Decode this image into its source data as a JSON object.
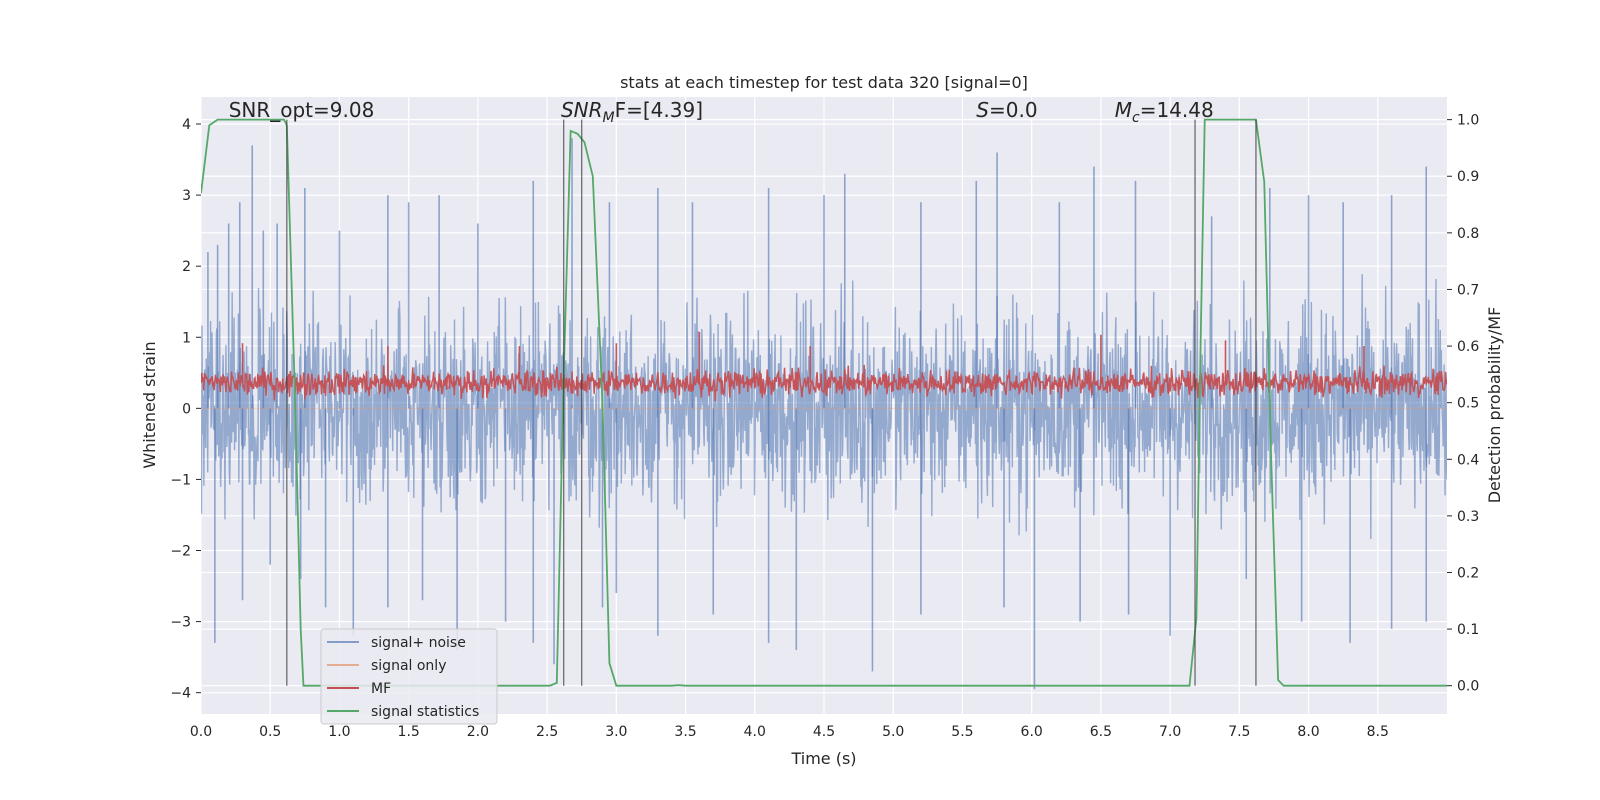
{
  "chart_data": {
    "type": "line",
    "title": "stats at each timestep for test data 320 [signal=0]",
    "xlabel": "Time (s)",
    "ylabel_left": "Whitened strain",
    "ylabel_right": "Detection probability/MF",
    "xlim": [
      0.0,
      9.0
    ],
    "ylim_left": [
      -4.3,
      4.38
    ],
    "ylim_right": [
      -0.05,
      1.04
    ],
    "x_ticks": [
      "0.0",
      "0.5",
      "1.0",
      "1.5",
      "2.0",
      "2.5",
      "3.0",
      "3.5",
      "4.0",
      "4.5",
      "5.0",
      "5.5",
      "6.0",
      "6.5",
      "7.0",
      "7.5",
      "8.0",
      "8.5"
    ],
    "x_tick_values": [
      0,
      0.5,
      1,
      1.5,
      2,
      2.5,
      3,
      3.5,
      4,
      4.5,
      5,
      5.5,
      6,
      6.5,
      7,
      7.5,
      8,
      8.5
    ],
    "y_left_ticks": [
      "4",
      "3",
      "2",
      "1",
      "0",
      "−1",
      "−2",
      "−3",
      "−4"
    ],
    "y_left_tick_values": [
      4,
      3,
      2,
      1,
      0,
      -1,
      -2,
      -3,
      -4
    ],
    "y_right_ticks": [
      "1.0",
      "0.9",
      "0.8",
      "0.7",
      "0.6",
      "0.5",
      "0.4",
      "0.3",
      "0.2",
      "0.1",
      "0.0"
    ],
    "y_right_tick_values": [
      1.0,
      0.9,
      0.8,
      0.7,
      0.6,
      0.5,
      0.4,
      0.3,
      0.2,
      0.1,
      0.0
    ],
    "grid": true,
    "legend_position": "lower-left",
    "annotations": [
      {
        "text": "SNR_opt=9.08",
        "x": 0.2,
        "y": 4.1
      },
      {
        "text_main": "SNR",
        "text_sub": "M",
        "text_rest": "F=[4.39]",
        "x": 2.6,
        "y": 4.1
      },
      {
        "text_main": "S",
        "text_rest": "=0.0",
        "x": 5.6,
        "y": 4.1
      },
      {
        "text_main": "M",
        "text_sub": "c",
        "text_rest": "=14.48",
        "x": 6.6,
        "y": 4.1
      }
    ],
    "vlines": [
      0.62,
      2.62,
      2.75,
      7.18,
      7.62
    ],
    "series": [
      {
        "name": "signal+ noise",
        "color": "#4c72b0",
        "axis": "left",
        "style": "noise",
        "envelope": {
          "low_typical": -1.6,
          "high_typical": 1.6,
          "max": 4.0,
          "min": -3.8
        },
        "peaks": [
          [
            0.05,
            2.2
          ],
          [
            0.12,
            2.3
          ],
          [
            0.2,
            2.6
          ],
          [
            0.28,
            2.9
          ],
          [
            0.37,
            3.7
          ],
          [
            0.45,
            2.5
          ],
          [
            0.55,
            2.6
          ],
          [
            0.75,
            3.1
          ],
          [
            1.0,
            2.5
          ],
          [
            1.35,
            3.0
          ],
          [
            1.5,
            2.9
          ],
          [
            1.72,
            3.0
          ],
          [
            2.0,
            2.6
          ],
          [
            2.4,
            3.2
          ],
          [
            2.68,
            3.8
          ],
          [
            2.95,
            2.9
          ],
          [
            3.3,
            3.1
          ],
          [
            3.55,
            2.9
          ],
          [
            4.1,
            3.1
          ],
          [
            4.5,
            3.0
          ],
          [
            4.65,
            3.3
          ],
          [
            5.2,
            2.9
          ],
          [
            5.6,
            3.2
          ],
          [
            5.75,
            3.6
          ],
          [
            6.2,
            2.9
          ],
          [
            6.45,
            3.4
          ],
          [
            6.75,
            3.2
          ],
          [
            7.3,
            2.7
          ],
          [
            7.72,
            3.1
          ],
          [
            8.0,
            3.0
          ],
          [
            8.25,
            2.9
          ],
          [
            8.6,
            3.0
          ],
          [
            8.85,
            3.4
          ]
        ],
        "troughs": [
          [
            0.1,
            -3.3
          ],
          [
            0.3,
            -2.7
          ],
          [
            0.5,
            -2.2
          ],
          [
            0.72,
            -2.4
          ],
          [
            0.9,
            -2.8
          ],
          [
            1.1,
            -3.2
          ],
          [
            1.35,
            -2.8
          ],
          [
            1.6,
            -2.7
          ],
          [
            1.85,
            -3.4
          ],
          [
            2.2,
            -3.0
          ],
          [
            2.4,
            -3.3
          ],
          [
            2.55,
            -3.6
          ],
          [
            2.9,
            -2.8
          ],
          [
            3.0,
            -2.6
          ],
          [
            3.3,
            -3.2
          ],
          [
            3.7,
            -2.9
          ],
          [
            4.1,
            -3.3
          ],
          [
            4.3,
            -3.4
          ],
          [
            4.85,
            -3.7
          ],
          [
            5.2,
            -2.9
          ],
          [
            5.8,
            -2.8
          ],
          [
            6.02,
            -3.95
          ],
          [
            6.35,
            -3.0
          ],
          [
            6.7,
            -2.9
          ],
          [
            7.0,
            -3.2
          ],
          [
            7.55,
            -2.4
          ],
          [
            7.95,
            -3.0
          ],
          [
            8.3,
            -3.3
          ],
          [
            8.6,
            -3.1
          ],
          [
            8.85,
            -3.0
          ]
        ]
      },
      {
        "name": "signal only",
        "color": "#dd8452",
        "axis": "left",
        "style": "flat",
        "value": 0.0
      },
      {
        "name": "MF",
        "color": "#c44e52",
        "axis": "right",
        "style": "noise",
        "envelope": {
          "low_typical": 0.505,
          "high_typical": 0.565,
          "max": 0.625,
          "min": 0.5
        },
        "peaks": [
          [
            0.3,
            0.605
          ],
          [
            1.35,
            0.6
          ],
          [
            2.3,
            0.6
          ],
          [
            3.0,
            0.605
          ],
          [
            3.6,
            0.625
          ],
          [
            4.4,
            0.6
          ],
          [
            6.5,
            0.62
          ],
          [
            7.4,
            0.61
          ],
          [
            8.4,
            0.6
          ]
        ]
      },
      {
        "name": "signal statistics",
        "color": "#55a868",
        "axis": "right",
        "style": "line",
        "x": [
          0.0,
          0.06,
          0.12,
          0.2,
          0.3,
          0.45,
          0.6,
          0.62,
          0.68,
          0.72,
          0.74,
          1.0,
          1.5,
          2.0,
          2.3,
          2.52,
          2.57,
          2.62,
          2.67,
          2.72,
          2.77,
          2.83,
          2.9,
          2.95,
          3.0,
          3.2,
          3.4,
          3.45,
          3.5,
          4.0,
          5.0,
          6.0,
          6.5,
          7.0,
          7.14,
          7.19,
          7.22,
          7.25,
          7.3,
          7.5,
          7.62,
          7.68,
          7.73,
          7.78,
          7.82,
          8.0,
          8.5,
          9.0
        ],
        "y": [
          0.87,
          0.99,
          1.0,
          1.0,
          1.0,
          1.0,
          1.0,
          0.99,
          0.5,
          0.1,
          0.0,
          0.0,
          0.0,
          0.0,
          0.0,
          0.0,
          0.005,
          0.55,
          0.98,
          0.975,
          0.96,
          0.9,
          0.5,
          0.04,
          0.0,
          0.0,
          0.0,
          0.001,
          0.0,
          0.0,
          0.0,
          0.0,
          0.0,
          0.0,
          0.0,
          0.12,
          0.6,
          1.0,
          1.0,
          1.0,
          1.0,
          0.89,
          0.4,
          0.01,
          0.0,
          0.0,
          0.0,
          0.0
        ]
      }
    ]
  }
}
